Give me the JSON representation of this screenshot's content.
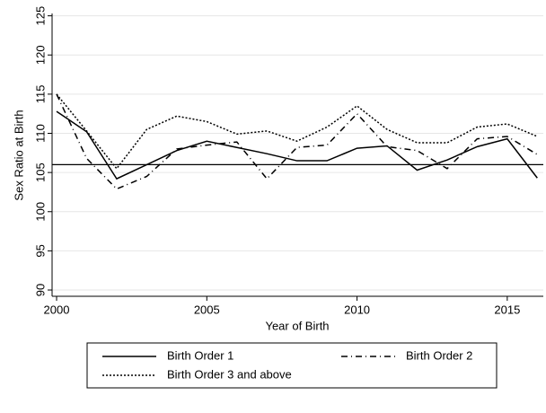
{
  "chart_data": {
    "type": "line",
    "x_label": "Year of Birth",
    "y_label": "Sex Ratio at Birth",
    "x": [
      2000,
      2001,
      2002,
      2003,
      2004,
      2005,
      2006,
      2007,
      2008,
      2009,
      2010,
      2011,
      2012,
      2013,
      2014,
      2015,
      2016
    ],
    "series": [
      {
        "name": "Birth Order 1",
        "color": "#000000",
        "dash": "solid",
        "values": [
          112.8,
          110.2,
          104.2,
          106.0,
          107.8,
          109.0,
          108.2,
          107.4,
          106.5,
          106.5,
          108.1,
          108.4,
          105.3,
          106.6,
          108.3,
          109.3,
          104.3
        ]
      },
      {
        "name": "Birth Order 2",
        "color": "#000000",
        "dash": "dashdot",
        "values": [
          115.0,
          106.8,
          102.9,
          104.5,
          108.0,
          108.5,
          108.9,
          104.2,
          108.2,
          108.5,
          112.5,
          108.3,
          107.8,
          105.5,
          109.3,
          109.6,
          107.3
        ]
      },
      {
        "name": "Birth Order 3 and above",
        "color": "#000000",
        "dash": "dotted",
        "values": [
          115.0,
          110.3,
          105.5,
          110.5,
          112.2,
          111.5,
          109.9,
          110.3,
          109.0,
          110.8,
          113.5,
          110.5,
          108.8,
          108.8,
          110.8,
          111.2,
          109.6
        ]
      }
    ],
    "reference_line": 106,
    "xlim": [
      1999.85,
      2016.2
    ],
    "xticks": [
      2000,
      2005,
      2010,
      2015
    ],
    "ylim": [
      89.2,
      125.3
    ],
    "yticks": [
      90,
      95,
      100,
      105,
      110,
      115,
      120,
      125
    ],
    "grid": true,
    "legend": "bottom"
  }
}
